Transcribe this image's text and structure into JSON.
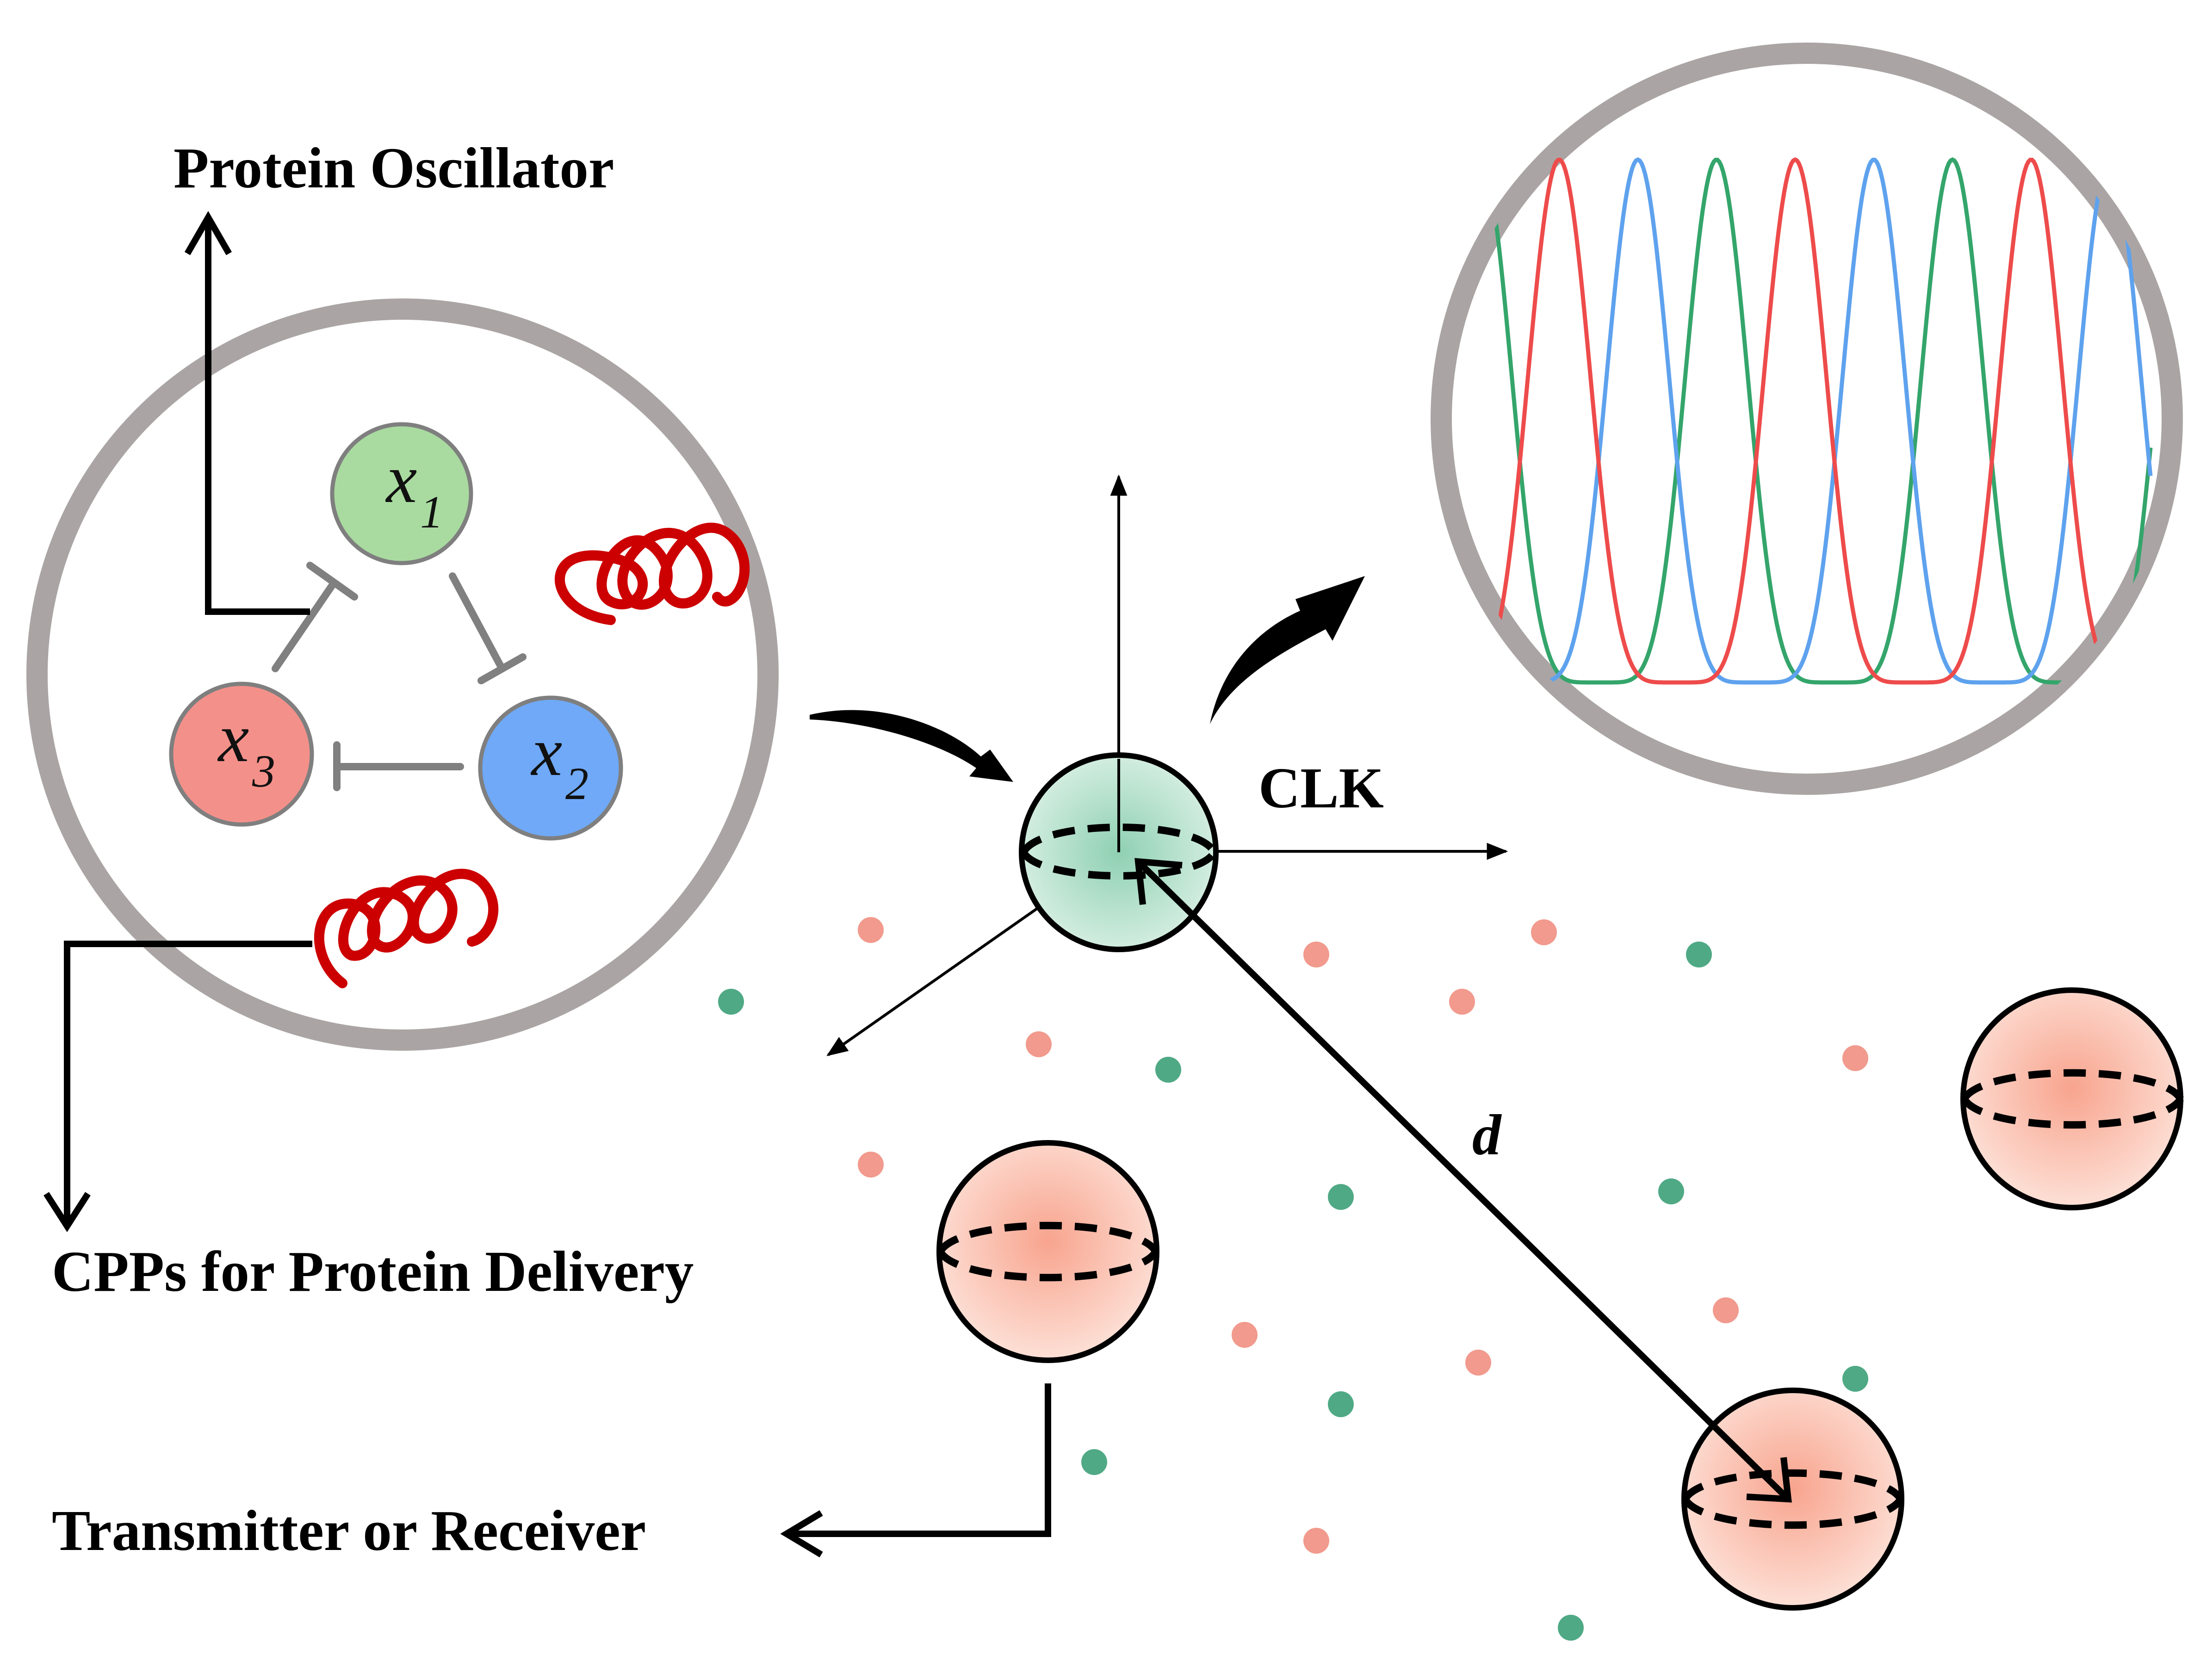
{
  "labels": {
    "protein_oscillator": "Protein Oscillator",
    "cpps": "CPPs for Protein Delivery",
    "transmitter_receiver": "Transmitter or Receiver",
    "clk": "CLK",
    "distance": "d"
  },
  "nodes": [
    {
      "id": "x1",
      "var": "x",
      "sub": "1",
      "color": "#a9dba0"
    },
    {
      "id": "x2",
      "var": "x",
      "sub": "2",
      "color": "#6fa9f7"
    },
    {
      "id": "x3",
      "var": "x",
      "sub": "3",
      "color": "#f4908a"
    }
  ],
  "colors": {
    "outer_ring": "#aaa5a4",
    "inhibition_edge": "#808080",
    "helix": "#cc0000",
    "clk_cell": "#b3dcc8",
    "peer_cell": "#f8b4a3",
    "dot_red": "#f19a8d",
    "dot_green": "#4fa985",
    "wave_red": "#ee4b4b",
    "wave_blue": "#5ea2ee",
    "wave_green": "#34a56b"
  },
  "icons": {
    "helix": "helix-icon",
    "inhibition": "inhibition-arrow-icon"
  }
}
